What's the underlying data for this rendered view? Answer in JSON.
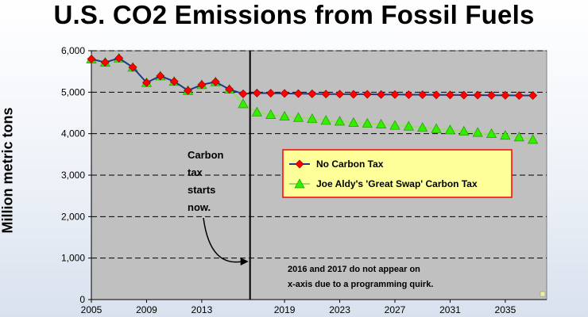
{
  "chart_data": {
    "type": "line",
    "title": "U.S. CO2 Emissions from Fossil Fuels",
    "ylabel": "Million metric tons",
    "xlabel": "",
    "ylim": [
      0,
      6000
    ],
    "xlim": [
      2005,
      2038
    ],
    "yticks": [
      "0",
      "1,000",
      "2,000",
      "3,000",
      "4,000",
      "5,000",
      "6,000"
    ],
    "xticks": [
      "2005",
      "2009",
      "2013",
      "2019",
      "2023",
      "2027",
      "2031",
      "2035"
    ],
    "grid": true,
    "legend_position": "center-right",
    "series": [
      {
        "name": "No Carbon Tax",
        "color": "#ff0000",
        "line_color": "#1f3a8a",
        "marker": "diamond",
        "x": [
          2005,
          2006,
          2007,
          2008,
          2009,
          2010,
          2011,
          2012,
          2013,
          2014,
          2015,
          2016,
          2017,
          2018,
          2019,
          2020,
          2021,
          2022,
          2023,
          2024,
          2025,
          2026,
          2027,
          2028,
          2029,
          2030,
          2031,
          2032,
          2033,
          2034,
          2035,
          2036,
          2037
        ],
        "y": [
          5800,
          5720,
          5820,
          5600,
          5230,
          5390,
          5260,
          5040,
          5180,
          5250,
          5070,
          4960,
          4980,
          4975,
          4970,
          4965,
          4960,
          4955,
          4955,
          4950,
          4950,
          4945,
          4945,
          4940,
          4940,
          4935,
          4935,
          4930,
          4930,
          4925,
          4925,
          4920,
          4920
        ]
      },
      {
        "name": "Joe Aldy's 'Great Swap' Carbon Tax",
        "color": "#33ee00",
        "line_color": "#99dd66",
        "marker": "triangle",
        "x": [
          2005,
          2006,
          2007,
          2008,
          2009,
          2010,
          2011,
          2012,
          2013,
          2014,
          2015,
          2016,
          2017,
          2018,
          2019,
          2020,
          2021,
          2022,
          2023,
          2024,
          2025,
          2026,
          2027,
          2028,
          2029,
          2030,
          2031,
          2032,
          2033,
          2034,
          2035,
          2036,
          2037
        ],
        "y": [
          5800,
          5720,
          5820,
          5600,
          5230,
          5390,
          5260,
          5040,
          5180,
          5250,
          5070,
          4720,
          4520,
          4460,
          4420,
          4390,
          4360,
          4320,
          4300,
          4270,
          4250,
          4230,
          4200,
          4180,
          4150,
          4120,
          4090,
          4060,
          4030,
          4000,
          3960,
          3920,
          3860
        ]
      }
    ],
    "annotations": {
      "carbon_tax_lines": [
        "Carbon",
        "tax",
        "starts",
        "now."
      ],
      "quirk_note_lines": [
        "2016 and 2017 do not appear on",
        "x-axis  due to a programming quirk."
      ],
      "tax_start_year": 2016.5
    }
  },
  "colors": {
    "plot_bg": "#c0c0c0",
    "legend_bg": "#ffff99",
    "legend_border": "#ff0000",
    "gridline": "#000000",
    "vline": "#000000"
  }
}
